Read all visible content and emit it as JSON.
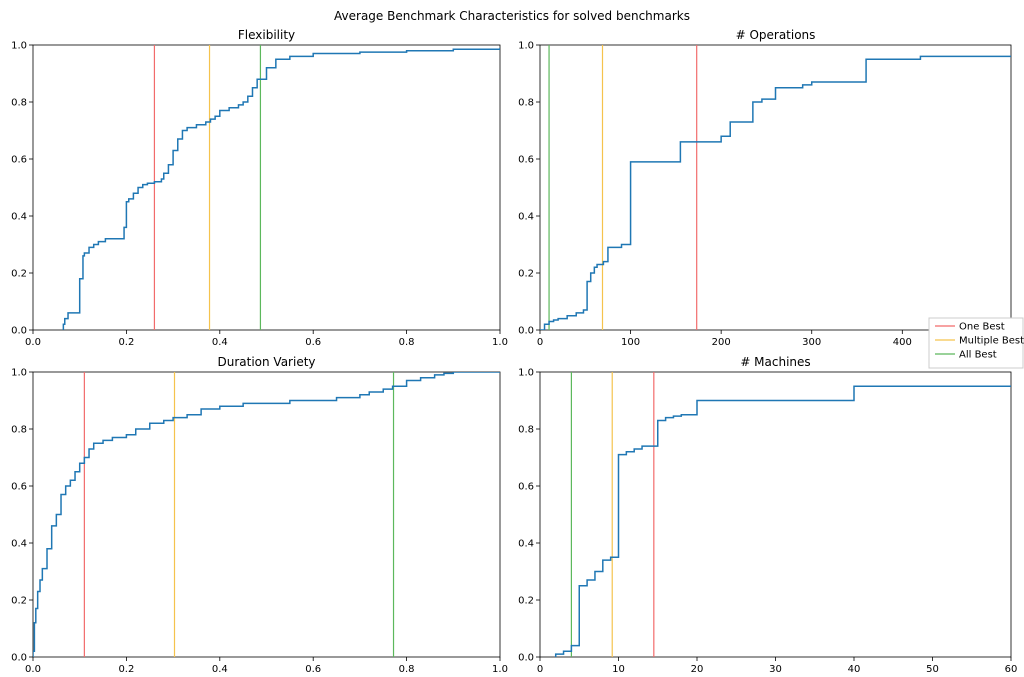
{
  "figure": {
    "title": "Average Benchmark Characteristics for solved benchmarks"
  },
  "legend": {
    "placement": "right-middle",
    "entries": [
      {
        "label": "One Best",
        "color": "#f26b6b"
      },
      {
        "label": "Multiple Best",
        "color": "#f5c34d"
      },
      {
        "label": "All Best",
        "color": "#5cb85c"
      }
    ]
  },
  "colors": {
    "ecdf_line": "#1f77b4"
  },
  "chart_data": [
    {
      "type": "line",
      "title": "Flexibility",
      "xlim": [
        0,
        1.0
      ],
      "ylim": [
        0,
        1.0
      ],
      "xticks": [
        "0.0",
        "0.2",
        "0.4",
        "0.6",
        "0.8",
        "1.0"
      ],
      "yticks": [
        "0.0",
        "0.2",
        "0.4",
        "0.6",
        "0.8",
        "1.0"
      ],
      "vlines": [
        {
          "series": "One Best",
          "x": 0.26
        },
        {
          "series": "Multiple Best",
          "x": 0.378
        },
        {
          "series": "All Best",
          "x": 0.487
        }
      ],
      "series": [
        {
          "x": [
            0.065,
            0.068,
            0.075,
            0.1,
            0.107,
            0.11,
            0.12,
            0.13,
            0.14,
            0.155,
            0.185,
            0.195,
            0.2,
            0.205,
            0.215,
            0.225,
            0.235,
            0.245,
            0.26,
            0.275,
            0.28,
            0.29,
            0.3,
            0.31,
            0.32,
            0.33,
            0.34,
            0.35,
            0.37,
            0.38,
            0.39,
            0.4,
            0.42,
            0.44,
            0.45,
            0.46,
            0.47,
            0.48,
            0.5,
            0.52,
            0.55,
            0.6,
            0.7,
            0.8,
            0.85,
            0.9,
            0.95,
            1.0
          ],
          "y": [
            0.02,
            0.04,
            0.06,
            0.18,
            0.26,
            0.27,
            0.29,
            0.3,
            0.31,
            0.32,
            0.32,
            0.36,
            0.45,
            0.46,
            0.48,
            0.5,
            0.51,
            0.515,
            0.52,
            0.53,
            0.55,
            0.58,
            0.63,
            0.67,
            0.7,
            0.71,
            0.71,
            0.72,
            0.73,
            0.74,
            0.75,
            0.77,
            0.78,
            0.79,
            0.8,
            0.82,
            0.85,
            0.88,
            0.92,
            0.95,
            0.96,
            0.97,
            0.975,
            0.98,
            0.98,
            0.985,
            0.985,
            0.99
          ]
        }
      ]
    },
    {
      "type": "line",
      "title": "# Operations",
      "xlim": [
        0,
        520
      ],
      "ylim": [
        0,
        1.0
      ],
      "xticks": [
        "0",
        "100",
        "200",
        "300",
        "400"
      ],
      "xtick_values": [
        0,
        100,
        200,
        300,
        400
      ],
      "yticks": [
        "0.0",
        "0.2",
        "0.4",
        "0.6",
        "0.8",
        "1.0"
      ],
      "vlines": [
        {
          "series": "One Best",
          "x": 173
        },
        {
          "series": "Multiple Best",
          "x": 69
        },
        {
          "series": "All Best",
          "x": 10
        }
      ],
      "series": [
        {
          "x": [
            0,
            5,
            10,
            15,
            20,
            30,
            40,
            48,
            52,
            56,
            60,
            63,
            66,
            70,
            75,
            80,
            85,
            90,
            100,
            130,
            155,
            185,
            200,
            210,
            235,
            245,
            260,
            280,
            290,
            300,
            360,
            390,
            420,
            520
          ],
          "y": [
            0.0,
            0.02,
            0.03,
            0.035,
            0.04,
            0.05,
            0.06,
            0.07,
            0.17,
            0.2,
            0.22,
            0.23,
            0.23,
            0.24,
            0.29,
            0.29,
            0.29,
            0.3,
            0.59,
            0.59,
            0.66,
            0.66,
            0.68,
            0.73,
            0.8,
            0.81,
            0.85,
            0.85,
            0.86,
            0.87,
            0.95,
            0.95,
            0.96,
            0.96
          ]
        }
      ]
    },
    {
      "type": "line",
      "title": "Duration Variety",
      "xlim": [
        0,
        1.0
      ],
      "ylim": [
        0,
        1.0
      ],
      "xticks": [
        "0.0",
        "0.2",
        "0.4",
        "0.6",
        "0.8",
        "1.0"
      ],
      "yticks": [
        "0.0",
        "0.2",
        "0.4",
        "0.6",
        "0.8",
        "1.0"
      ],
      "vlines": [
        {
          "series": "One Best",
          "x": 0.11
        },
        {
          "series": "Multiple Best",
          "x": 0.303
        },
        {
          "series": "All Best",
          "x": 0.772
        }
      ],
      "series": [
        {
          "x": [
            0.0,
            0.003,
            0.006,
            0.01,
            0.015,
            0.02,
            0.03,
            0.04,
            0.05,
            0.06,
            0.07,
            0.08,
            0.09,
            0.1,
            0.11,
            0.12,
            0.13,
            0.15,
            0.17,
            0.2,
            0.22,
            0.25,
            0.28,
            0.3,
            0.33,
            0.36,
            0.4,
            0.45,
            0.5,
            0.55,
            0.6,
            0.65,
            0.7,
            0.72,
            0.75,
            0.77,
            0.8,
            0.83,
            0.86,
            0.88,
            0.9,
            0.93,
            0.95
          ],
          "y": [
            0.02,
            0.12,
            0.17,
            0.23,
            0.27,
            0.31,
            0.38,
            0.46,
            0.5,
            0.57,
            0.6,
            0.62,
            0.65,
            0.68,
            0.7,
            0.73,
            0.75,
            0.76,
            0.77,
            0.78,
            0.8,
            0.82,
            0.83,
            0.84,
            0.85,
            0.87,
            0.88,
            0.89,
            0.89,
            0.9,
            0.9,
            0.91,
            0.92,
            0.93,
            0.94,
            0.95,
            0.97,
            0.98,
            0.99,
            0.995,
            1.0,
            1.0,
            1.0
          ]
        }
      ]
    },
    {
      "type": "line",
      "title": "# Machines",
      "xlim": [
        0,
        60
      ],
      "ylim": [
        0,
        1.0
      ],
      "xticks": [
        "0",
        "10",
        "20",
        "30",
        "40",
        "50",
        "60"
      ],
      "xtick_values": [
        0,
        10,
        20,
        30,
        40,
        50,
        60
      ],
      "yticks": [
        "0.0",
        "0.2",
        "0.4",
        "0.6",
        "0.8",
        "1.0"
      ],
      "vlines": [
        {
          "series": "One Best",
          "x": 14.5
        },
        {
          "series": "Multiple Best",
          "x": 9.2
        },
        {
          "series": "All Best",
          "x": 4.0
        }
      ],
      "series": [
        {
          "x": [
            2,
            3,
            4,
            5,
            6,
            7,
            8,
            9,
            10,
            11,
            12,
            13,
            15,
            16,
            17,
            18,
            20,
            40,
            60
          ],
          "y": [
            0.01,
            0.02,
            0.04,
            0.25,
            0.27,
            0.3,
            0.34,
            0.35,
            0.71,
            0.72,
            0.73,
            0.74,
            0.83,
            0.84,
            0.845,
            0.85,
            0.9,
            0.95,
            0.95
          ]
        }
      ]
    }
  ]
}
